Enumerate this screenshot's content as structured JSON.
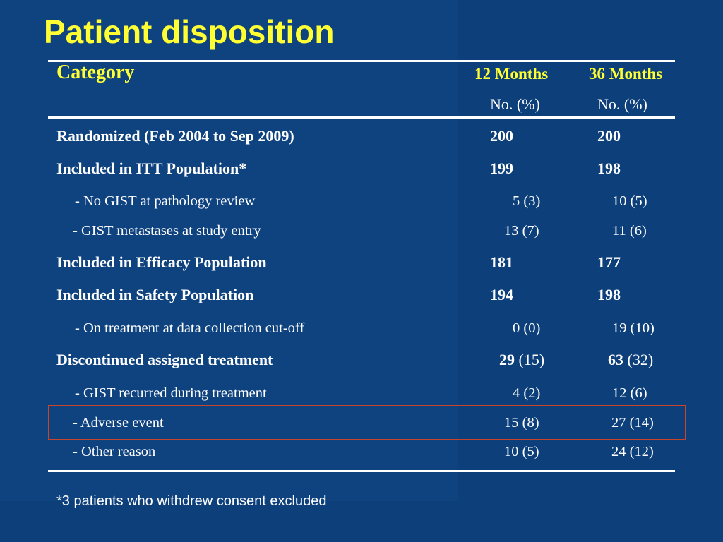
{
  "slide": {
    "title": "Patient disposition",
    "footnote": "*3 patients who withdrew consent excluded",
    "colors": {
      "background": "#0d3f7a",
      "title": "#ffff33",
      "highlight_border": "#c8442a"
    }
  },
  "table": {
    "header": {
      "category": "Category",
      "col_12": "12 Months",
      "col_36": "36 Months",
      "sub_12": "No. (%)",
      "sub_36": "No. (%)"
    },
    "rows": [
      {
        "label": "Randomized (Feb 2004 to Sep 2009)",
        "m12": "200",
        "m36": "200"
      },
      {
        "label": "Included in ITT Population*",
        "m12": "199",
        "m36": "198"
      },
      {
        "label": "- No GIST at pathology review",
        "m12": "5 (3)",
        "m36": "10 (5)"
      },
      {
        "label": "- GIST metastases at study entry",
        "m12": "13 (7)",
        "m36": "11 (6)"
      },
      {
        "label": "Included in Efficacy Population",
        "m12": "181",
        "m36": "177"
      },
      {
        "label": "Included in Safety Population",
        "m12": "194",
        "m36": "198"
      },
      {
        "label": "- On treatment at data collection cut-off",
        "m12": "0 (0)",
        "m36": "19 (10)"
      },
      {
        "label": "Discontinued assigned treatment",
        "m12_num": "29",
        "m12_pct": "(15)",
        "m36_num": "63",
        "m36_pct": "(32)"
      },
      {
        "label": "- GIST recurred during treatment",
        "m12": "4 (2)",
        "m36": "12 (6)"
      },
      {
        "label": "- Adverse event",
        "m12": "15 (8)",
        "m36": "27 (14)"
      },
      {
        "label": "- Other reason",
        "m12": "10 (5)",
        "m36": "24 (12)"
      }
    ]
  }
}
